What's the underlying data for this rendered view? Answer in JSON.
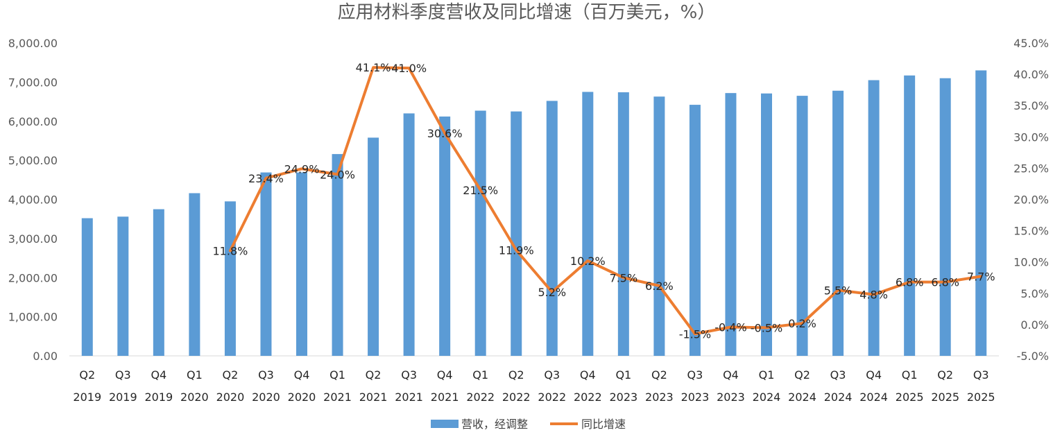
{
  "chart_data": {
    "type": "bar",
    "title": "应用材料季度营收及同比增速（百万美元，%）",
    "categories": [
      [
        "Q2",
        "2019"
      ],
      [
        "Q3",
        "2019"
      ],
      [
        "Q4",
        "2019"
      ],
      [
        "Q1",
        "2020"
      ],
      [
        "Q2",
        "2020"
      ],
      [
        "Q3",
        "2020"
      ],
      [
        "Q4",
        "2020"
      ],
      [
        "Q1",
        "2021"
      ],
      [
        "Q2",
        "2021"
      ],
      [
        "Q3",
        "2021"
      ],
      [
        "Q4",
        "2021"
      ],
      [
        "Q1",
        "2022"
      ],
      [
        "Q2",
        "2022"
      ],
      [
        "Q3",
        "2022"
      ],
      [
        "Q4",
        "2022"
      ],
      [
        "Q1",
        "2023"
      ],
      [
        "Q2",
        "2023"
      ],
      [
        "Q3",
        "2023"
      ],
      [
        "Q4",
        "2023"
      ],
      [
        "Q1",
        "2024"
      ],
      [
        "Q2",
        "2024"
      ],
      [
        "Q3",
        "2024"
      ],
      [
        "Q4",
        "2024"
      ],
      [
        "Q1",
        "2025"
      ],
      [
        "Q2",
        "2025"
      ],
      [
        "Q3",
        "2025"
      ]
    ],
    "series": [
      {
        "name": "营收，经调整",
        "type": "bar",
        "axis": "left",
        "color": "#5B9BD5",
        "values": [
          3520,
          3560,
          3750,
          4160,
          3950,
          4690,
          4690,
          5160,
          5580,
          6200,
          6120,
          6270,
          6250,
          6520,
          6750,
          6740,
          6630,
          6420,
          6720,
          6710,
          6650,
          6780,
          7050,
          7170,
          7100,
          7300
        ]
      },
      {
        "name": "同比增速",
        "type": "line",
        "axis": "right",
        "color": "#ED7D31",
        "values": [
          null,
          null,
          null,
          null,
          11.8,
          23.4,
          24.9,
          24.0,
          41.1,
          41.0,
          30.6,
          21.5,
          11.9,
          5.2,
          10.2,
          7.5,
          6.2,
          -1.5,
          -0.4,
          -0.5,
          0.2,
          5.5,
          4.8,
          6.8,
          6.8,
          7.7
        ],
        "labels": [
          "",
          "",
          "",
          "",
          "11.8%",
          "23.4%",
          "24.9%",
          "24.0%",
          "41.1%",
          "41.0%",
          "30.6%",
          "21.5%",
          "11.9%",
          "5.2%",
          "10.2%",
          "7.5%",
          "6.2%",
          "-1.5%",
          "-0.4%",
          "-0.5%",
          "0.2%",
          "5.5%",
          "4.8%",
          "6.8%",
          "6.8%",
          "7.7%"
        ]
      }
    ],
    "y_left": {
      "min": 0,
      "max": 8000,
      "ticks": [
        "0.00",
        "1,000.00",
        "2,000.00",
        "3,000.00",
        "4,000.00",
        "5,000.00",
        "6,000.00",
        "7,000.00",
        "8,000.00"
      ]
    },
    "y_right": {
      "min": -5,
      "max": 45,
      "ticks": [
        "-5.0%",
        "0.0%",
        "5.0%",
        "10.0%",
        "15.0%",
        "20.0%",
        "25.0%",
        "30.0%",
        "35.0%",
        "40.0%",
        "45.0%"
      ]
    },
    "grid": false,
    "legend_position": "bottom"
  }
}
